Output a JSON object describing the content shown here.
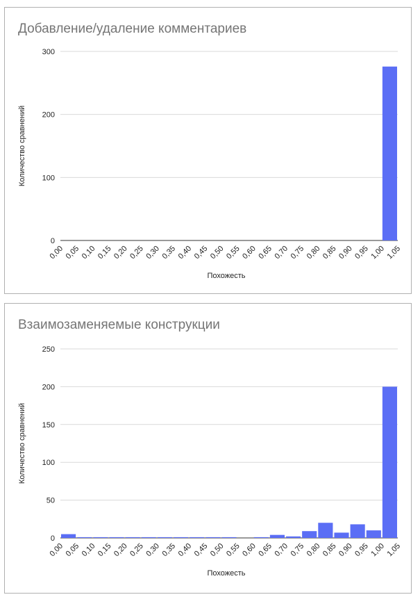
{
  "chart_data": [
    {
      "type": "bar",
      "title": "Добавление/удаление комментариев",
      "xlabel": "Похожесть",
      "ylabel": "Количество сравнений",
      "x_ticks": [
        "0,00",
        "0,05",
        "0,10",
        "0,15",
        "0,20",
        "0,25",
        "0,30",
        "0,35",
        "0,40",
        "0,45",
        "0,50",
        "0,55",
        "0,60",
        "0,65",
        "0,70",
        "0,75",
        "0,80",
        "0,85",
        "0,90",
        "0,95",
        "1,00",
        "1,05"
      ],
      "y_ticks": [
        "0",
        "100",
        "200",
        "300"
      ],
      "ylim": [
        0,
        300
      ],
      "bin_width": 0.05,
      "bins": [
        {
          "x_start": 1.0,
          "x_end": 1.05,
          "value": 276
        }
      ],
      "grid": true,
      "bar_color": "#5b6ef5"
    },
    {
      "type": "bar",
      "title": "Взаимозаменяемые конструкции",
      "xlabel": "Похожесть",
      "ylabel": "Количество сравнений",
      "x_ticks": [
        "0,00",
        "0,05",
        "0,10",
        "0,15",
        "0,20",
        "0,25",
        "0,30",
        "0,35",
        "0,40",
        "0,45",
        "0,50",
        "0,55",
        "0,60",
        "0,65",
        "0,70",
        "0,75",
        "0,80",
        "0,85",
        "0,90",
        "0,95",
        "1,00",
        "1,05"
      ],
      "y_ticks": [
        "0",
        "50",
        "100",
        "150",
        "200",
        "250"
      ],
      "ylim": [
        0,
        250
      ],
      "bin_width": 0.05,
      "bins": [
        {
          "x_start": 0.0,
          "x_end": 0.05,
          "value": 5
        },
        {
          "x_start": 0.05,
          "x_end": 0.1,
          "value": 1
        },
        {
          "x_start": 0.1,
          "x_end": 0.15,
          "value": 1
        },
        {
          "x_start": 0.15,
          "x_end": 0.2,
          "value": 1
        },
        {
          "x_start": 0.2,
          "x_end": 0.25,
          "value": 1
        },
        {
          "x_start": 0.25,
          "x_end": 0.3,
          "value": 1
        },
        {
          "x_start": 0.3,
          "x_end": 0.35,
          "value": 1
        },
        {
          "x_start": 0.35,
          "x_end": 0.4,
          "value": 1
        },
        {
          "x_start": 0.4,
          "x_end": 0.45,
          "value": 1
        },
        {
          "x_start": 0.45,
          "x_end": 0.5,
          "value": 1
        },
        {
          "x_start": 0.5,
          "x_end": 0.55,
          "value": 1
        },
        {
          "x_start": 0.55,
          "x_end": 0.6,
          "value": 0
        },
        {
          "x_start": 0.6,
          "x_end": 0.65,
          "value": 1
        },
        {
          "x_start": 0.65,
          "x_end": 0.7,
          "value": 4
        },
        {
          "x_start": 0.7,
          "x_end": 0.75,
          "value": 2
        },
        {
          "x_start": 0.75,
          "x_end": 0.8,
          "value": 9
        },
        {
          "x_start": 0.8,
          "x_end": 0.85,
          "value": 20
        },
        {
          "x_start": 0.85,
          "x_end": 0.9,
          "value": 7
        },
        {
          "x_start": 0.9,
          "x_end": 0.95,
          "value": 18
        },
        {
          "x_start": 0.95,
          "x_end": 1.0,
          "value": 10
        },
        {
          "x_start": 1.0,
          "x_end": 1.05,
          "value": 200
        }
      ],
      "grid": true,
      "bar_color": "#5b6ef5"
    }
  ]
}
